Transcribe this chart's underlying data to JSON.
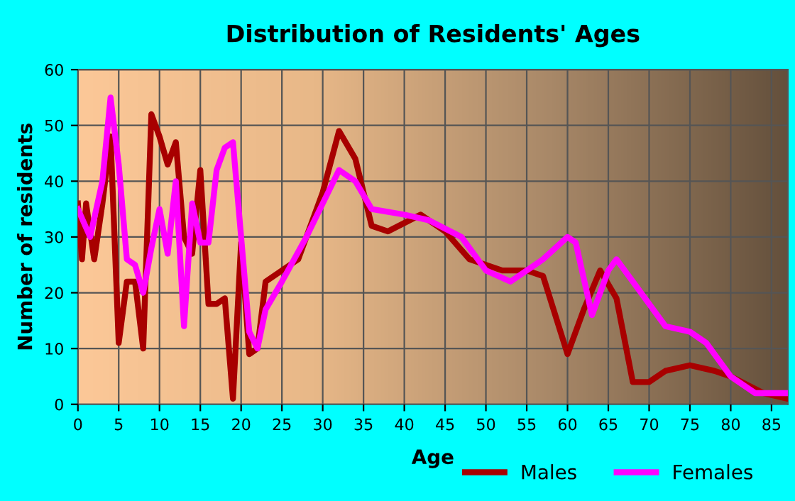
{
  "chart_data": {
    "type": "line",
    "title": "Distribution of Residents' Ages",
    "xlabel": "Age",
    "ylabel": "Number of residents",
    "xlim": [
      0,
      87
    ],
    "xticks": [
      0,
      5,
      10,
      15,
      20,
      25,
      30,
      35,
      40,
      45,
      50,
      55,
      60,
      65,
      70,
      75,
      80,
      85
    ],
    "ylim": [
      0,
      60
    ],
    "yticks": [
      0,
      10,
      20,
      30,
      40,
      50,
      60
    ],
    "grid": true,
    "legend": "bottom right",
    "marker": "none",
    "line_style": "solid",
    "series": [
      {
        "name": "Males",
        "color": "#a80000",
        "x": [
          0,
          0.5,
          1,
          2,
          3,
          4,
          5,
          6,
          7,
          8,
          9,
          10,
          11,
          12,
          13,
          14,
          15,
          16,
          17,
          18,
          19,
          20,
          21,
          22,
          23,
          25,
          27,
          30,
          32,
          34,
          36,
          38,
          42,
          45,
          48,
          52,
          55,
          57,
          60,
          62,
          64,
          66,
          68,
          70,
          72,
          75,
          78,
          80,
          84,
          87
        ],
        "values": [
          36,
          26,
          36,
          26,
          36,
          48,
          11,
          22,
          22,
          10,
          52,
          48,
          43,
          47,
          30,
          27,
          42,
          18,
          18,
          19,
          1,
          29,
          9,
          10,
          22,
          24,
          26,
          38,
          49,
          44,
          32,
          31,
          34,
          31,
          26,
          24,
          24,
          23,
          9,
          17,
          24,
          19,
          4,
          4,
          6,
          7,
          6,
          5,
          2,
          1
        ]
      },
      {
        "name": "Females",
        "color": "#ff00ff",
        "x": [
          0,
          1.5,
          3,
          4,
          5,
          6,
          7,
          8,
          9,
          10,
          11,
          12,
          13,
          14,
          15,
          16,
          17,
          18,
          19,
          20,
          21,
          22,
          23,
          25,
          28,
          30,
          32,
          34,
          36,
          40,
          43,
          47,
          50,
          53,
          57,
          60,
          61,
          63,
          65,
          66,
          68,
          70,
          72,
          75,
          77,
          80,
          83,
          87
        ],
        "values": [
          35,
          30,
          40,
          55,
          43,
          26,
          25,
          20,
          28,
          35,
          27,
          40,
          14,
          36,
          29,
          29,
          42,
          46,
          47,
          30,
          13,
          10,
          17,
          22,
          30,
          36,
          42,
          40,
          35,
          34,
          33,
          30,
          24,
          22,
          26,
          30,
          29,
          16,
          24,
          26,
          22,
          18,
          14,
          13,
          11,
          5,
          2,
          2
        ]
      }
    ]
  }
}
